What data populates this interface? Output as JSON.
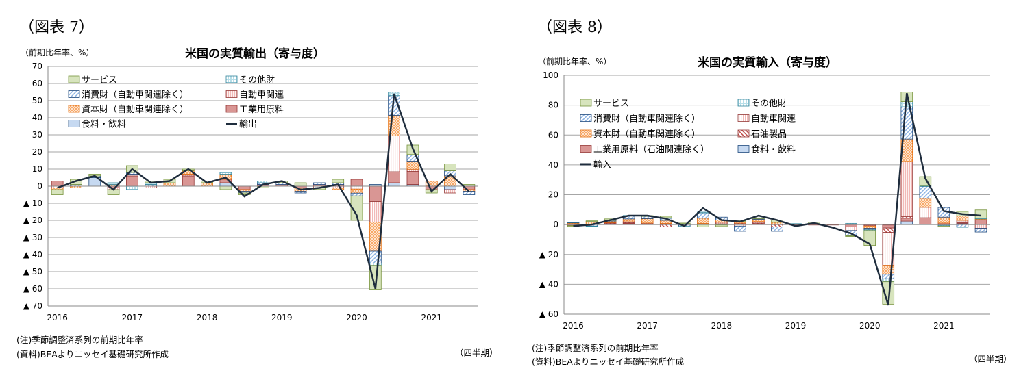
{
  "figures": [
    {
      "label": "（図表 7）",
      "unit": "（前期比年率、%）",
      "notes": [
        "(注)季節調整済系列の前期比年率",
        "(資料)BEAよりニッセイ基礎研究所作成"
      ],
      "period_label": "（四半期）"
    },
    {
      "label": "（図表 8）",
      "unit": "（前期比年率、%）",
      "notes": [
        "(注)季節調整済系列の前期比年率",
        "(資料)BEAよりニッセイ基礎研究所作成"
      ],
      "period_label": "（四半期）"
    }
  ],
  "chart_data": [
    {
      "type": "bar",
      "stacked": true,
      "title": "米国の実質輸出（寄与度）",
      "ylabel": "（前期比年率、%）",
      "xlabel": "（四半期）",
      "ylim": [
        -70,
        70
      ],
      "yticks": [
        70,
        60,
        50,
        40,
        30,
        20,
        10,
        0,
        -10,
        -20,
        -30,
        -40,
        -50,
        -60,
        -70
      ],
      "ytick_labels": [
        "70",
        "60",
        "50",
        "40",
        "30",
        "20",
        "10",
        "0",
        "▲ 10",
        "▲ 20",
        "▲ 30",
        "▲ 40",
        "▲ 50",
        "▲ 60",
        "▲ 70"
      ],
      "negative_prefix": "▲",
      "categories": [
        "2016Q1",
        "2016Q2",
        "2016Q3",
        "2016Q4",
        "2017Q1",
        "2017Q2",
        "2017Q3",
        "2017Q4",
        "2018Q1",
        "2018Q2",
        "2018Q3",
        "2018Q4",
        "2019Q1",
        "2019Q2",
        "2019Q3",
        "2019Q4",
        "2020Q1",
        "2020Q2",
        "2020Q3",
        "2020Q4",
        "2021Q1",
        "2021Q2",
        "2021Q3"
      ],
      "xtick_labels": [
        "2016",
        "2017",
        "2018",
        "2019",
        "2020",
        "2021"
      ],
      "grid": true,
      "legend_placement": "top-left",
      "legend_order": [
        "サービス",
        "その他財",
        "消費財（自動車関連除く）",
        "自動車関連",
        "資本財（自動車関連除く）",
        "工業用原料",
        "食料・飲料",
        "輸出"
      ],
      "series": [
        {
          "name": "食料・飲料",
          "style": "food",
          "values": [
            0,
            0,
            5,
            0,
            0,
            0,
            0,
            0,
            0,
            2,
            0,
            0,
            0,
            0,
            0,
            0,
            0,
            1,
            2,
            1,
            0,
            -2,
            0
          ]
        },
        {
          "name": "工業用原料",
          "style": "industrial",
          "values": [
            3,
            0,
            0,
            -1,
            6,
            0,
            0,
            6,
            0,
            2,
            -2,
            1,
            1,
            -1,
            1,
            1,
            4,
            -9,
            6.4,
            7.6,
            -2,
            0,
            -2
          ]
        },
        {
          "name": "自動車関連",
          "style": "auto",
          "values": [
            -1,
            0,
            0,
            -1,
            1,
            -1,
            0,
            1,
            0,
            0,
            0,
            0,
            0,
            0,
            -1,
            -1,
            -1.7,
            -12,
            21,
            1.3,
            0,
            -2,
            0
          ]
        },
        {
          "name": "資本財（自動車関連除く）",
          "style": "capital",
          "values": [
            -1,
            -1,
            0,
            1,
            0,
            0,
            2,
            2,
            2,
            3,
            -1,
            0,
            0,
            -2,
            0,
            -1,
            -2.4,
            -17,
            12,
            4.7,
            3,
            6,
            -1
          ]
        },
        {
          "name": "消費財（自動車関連除く）",
          "style": "consumer",
          "values": [
            0,
            1,
            1,
            0,
            1,
            1,
            0,
            0,
            0,
            0,
            -1,
            1,
            1,
            -1,
            1,
            1,
            -1.6,
            -7,
            11.5,
            3.6,
            0,
            3,
            -2
          ]
        },
        {
          "name": "その他財",
          "style": "other",
          "values": [
            0,
            0,
            0,
            1,
            -2,
            1,
            0,
            0,
            0,
            1,
            0,
            1,
            0,
            0,
            0,
            0,
            0,
            -1.3,
            2,
            0.3,
            0,
            0,
            0
          ]
        },
        {
          "name": "サービス",
          "style": "service",
          "values": [
            -3,
            3,
            1,
            -3,
            4,
            1,
            2,
            1,
            1,
            -2,
            -1,
            -1,
            1,
            2,
            -1,
            2,
            -14.3,
            -14.3,
            0,
            5.5,
            -2,
            4,
            1
          ]
        },
        {
          "name": "輸出",
          "style": "line",
          "type": "line",
          "values": [
            -1,
            3,
            6,
            -2,
            10,
            2,
            3,
            10,
            2,
            5,
            -6,
            1,
            3,
            -2,
            -1,
            1,
            -17,
            -60,
            54,
            22,
            -3,
            7,
            -3
          ]
        }
      ]
    },
    {
      "type": "bar",
      "stacked": true,
      "title": "米国の実質輸入（寄与度）",
      "ylabel": "（前期比年率、%）",
      "xlabel": "（四半期）",
      "ylim": [
        -60,
        100
      ],
      "yticks": [
        100,
        80,
        60,
        40,
        20,
        0,
        -20,
        -40,
        -60
      ],
      "ytick_labels": [
        "100",
        "80",
        "60",
        "40",
        "20",
        "0",
        "▲ 20",
        "▲ 40",
        "▲ 60"
      ],
      "negative_prefix": "▲",
      "categories": [
        "2016Q1",
        "2016Q2",
        "2016Q3",
        "2016Q4",
        "2017Q1",
        "2017Q2",
        "2017Q3",
        "2017Q4",
        "2018Q1",
        "2018Q2",
        "2018Q3",
        "2018Q4",
        "2019Q1",
        "2019Q2",
        "2019Q3",
        "2019Q4",
        "2020Q1",
        "2020Q2",
        "2020Q3",
        "2020Q4",
        "2021Q1",
        "2021Q2",
        "2021Q3"
      ],
      "xtick_labels": [
        "2016",
        "2017",
        "2018",
        "2019",
        "2020",
        "2021"
      ],
      "grid": true,
      "legend_placement": "top-left",
      "legend_order": [
        "サービス",
        "その他財",
        "消費財（自動車関連除く）",
        "自動車関連",
        "資本財（自動車関連除く）",
        "石油製品",
        "工業用原料（石油関連除く）",
        "食料・飲料",
        "輸入"
      ],
      "series": [
        {
          "name": "食料・飲料",
          "style": "food",
          "values": [
            0,
            0,
            0,
            0,
            0,
            0,
            0,
            0,
            0,
            0,
            0,
            0,
            0,
            0,
            0,
            0.3,
            0,
            -0.3,
            2.3,
            0.3,
            0,
            0.8,
            0
          ]
        },
        {
          "name": "工業用原料（石油関連除く）",
          "style": "industrial",
          "values": [
            -0.7,
            0,
            0.5,
            0.8,
            0.5,
            0.3,
            0,
            0.3,
            0.5,
            0.5,
            0.5,
            0,
            -0.3,
            -0.3,
            0,
            -1.5,
            -0.5,
            -2,
            2,
            4.3,
            1,
            0.5,
            3
          ]
        },
        {
          "name": "石油製品",
          "style": "petroleum",
          "values": [
            0.3,
            0,
            0.5,
            0.5,
            0,
            -1.5,
            0,
            0,
            0,
            0.5,
            0.5,
            -1.5,
            0,
            0,
            -0.3,
            0,
            0,
            -3,
            1,
            0,
            0,
            0.5,
            0.3
          ]
        },
        {
          "name": "自動車関連",
          "style": "auto",
          "values": [
            0.3,
            0,
            0.3,
            1,
            0.5,
            0.5,
            0,
            0.5,
            1,
            -1,
            1,
            0,
            0,
            0,
            0,
            -2.5,
            -0.5,
            -22,
            37,
            7,
            -0.5,
            1,
            -2.5
          ]
        },
        {
          "name": "資本財（自動車関連除く）",
          "style": "capital",
          "values": [
            0.5,
            2,
            1,
            1.5,
            3,
            2,
            0.5,
            3.5,
            1.5,
            1,
            1.5,
            1.5,
            0,
            0.3,
            0,
            0,
            -1.5,
            -6,
            15,
            6,
            4,
            3,
            0.5
          ]
        },
        {
          "name": "消費財（自動車関連除く）",
          "style": "consumer",
          "values": [
            0.3,
            -1,
            0.5,
            2,
            1.5,
            1.5,
            -1,
            3.5,
            2,
            -3.5,
            0.5,
            -3,
            0.3,
            0.3,
            0,
            -3.5,
            -1,
            -3,
            21.5,
            8,
            6.5,
            -1.5,
            -2.5
          ]
        },
        {
          "name": "その他財",
          "style": "other",
          "values": [
            0.3,
            -0.3,
            0,
            0.3,
            0,
            0.3,
            -0.5,
            0.5,
            -0.3,
            0,
            0,
            0,
            0.3,
            0,
            0,
            0.5,
            -0.5,
            -2,
            3.5,
            0.5,
            -0.5,
            -0.3,
            0.5
          ]
        },
        {
          "name": "サービス",
          "style": "service",
          "values": [
            -0.5,
            0.5,
            1,
            0,
            0.5,
            1,
            0.5,
            -1.5,
            -1,
            0.5,
            0.5,
            1.5,
            0,
            1,
            0.3,
            -0.5,
            -10,
            -15,
            6.5,
            6,
            -0.5,
            3,
            5.5
          ]
        },
        {
          "name": "輸入",
          "style": "line",
          "type": "line",
          "values": [
            -1,
            0,
            3,
            6,
            6,
            4,
            -1,
            11,
            3,
            2,
            6,
            3,
            -1,
            1,
            -2,
            -6,
            -13,
            -54,
            88,
            31,
            9,
            7,
            6
          ]
        }
      ]
    }
  ],
  "colors": {
    "service": "#d7e4bd",
    "other": "#b7dee8",
    "consumer": "#dbe5f1",
    "auto": "#f2dcdb",
    "capital": "#fac090",
    "industrial": "#d99694",
    "food": "#c6d9f1",
    "petroleum": "#e6b9b8",
    "line": "#1f2d3d",
    "grid": "#a6a6a6"
  }
}
